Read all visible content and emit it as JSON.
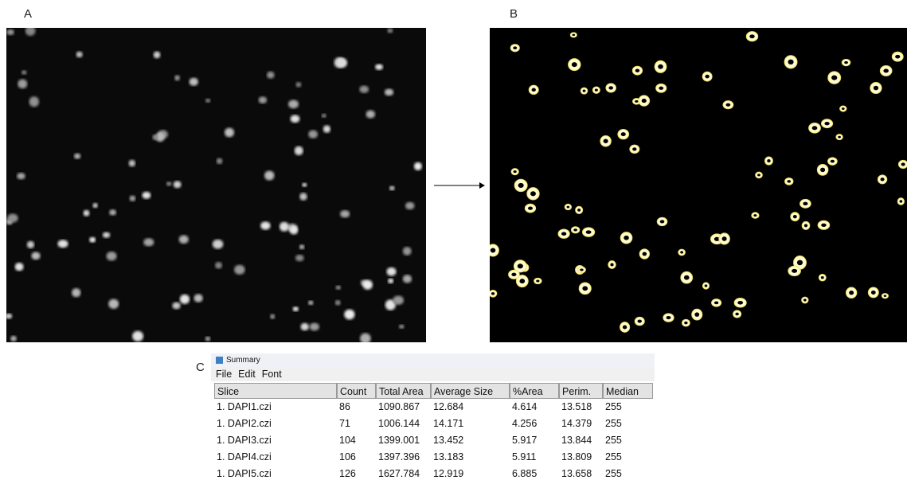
{
  "panels": {
    "a": {
      "label": "A"
    },
    "b": {
      "label": "B"
    },
    "c": {
      "label": "C"
    }
  },
  "window": {
    "title": "Summary",
    "menu": [
      "File",
      "Edit",
      "Font"
    ]
  },
  "table": {
    "columns": [
      "Slice",
      "Count",
      "Total Area",
      "Average Size",
      "%Area",
      "Perim.",
      "Median"
    ],
    "rows": [
      [
        "1. DAPI1.czi",
        86,
        1090.867,
        12.684,
        4.614,
        13.518,
        255
      ],
      [
        "1. DAPI2.czi",
        71,
        1006.144,
        14.171,
        4.256,
        14.379,
        255
      ],
      [
        "1. DAPI3.czi",
        104,
        1399.001,
        13.452,
        5.917,
        13.844,
        255
      ],
      [
        "1. DAPI4.czi",
        106,
        1397.396,
        13.183,
        5.911,
        13.809,
        255
      ],
      [
        "1. DAPI5.czi",
        126,
        1627.784,
        12.919,
        6.885,
        13.658,
        255
      ]
    ]
  }
}
